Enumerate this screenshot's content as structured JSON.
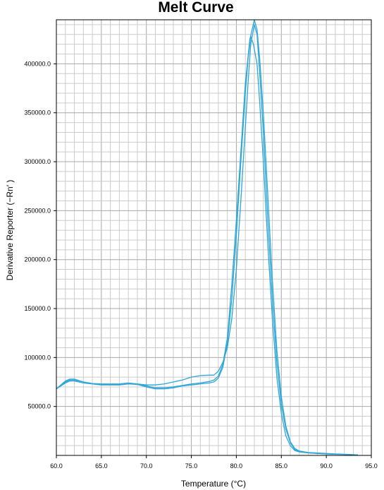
{
  "chart_data": {
    "type": "line",
    "title": "Melt Curve",
    "xlabel": "Temperature (°C)",
    "ylabel": "Derivative Reporter (−Rn′ )",
    "xlim": [
      60.0,
      95.0
    ],
    "ylim": [
      0,
      445000
    ],
    "x_ticks": [
      "60.0",
      "65.0",
      "70.0",
      "75.0",
      "80.0",
      "85.0",
      "90.0",
      "95.0"
    ],
    "y_ticks": [
      "50000.0",
      "100000.0",
      "150000.0",
      "200000.0",
      "250000.0",
      "300000.0",
      "350000.0",
      "400000.0"
    ],
    "x_tick_values": [
      60,
      65,
      70,
      75,
      80,
      85,
      90,
      95
    ],
    "y_tick_values": [
      50000,
      100000,
      150000,
      200000,
      250000,
      300000,
      350000,
      400000
    ],
    "grid": true,
    "line_color": "#2ea6d8",
    "series": [
      {
        "x": [
          60.0,
          60.5,
          61.0,
          61.5,
          62.0,
          63.0,
          64.0,
          65.0,
          66.0,
          67.0,
          68.0,
          69.0,
          70.0,
          71.0,
          72.0,
          73.0,
          74.0,
          75.0,
          76.0,
          77.0,
          77.5,
          78.0,
          78.5,
          79.0,
          79.5,
          80.0,
          80.5,
          81.0,
          81.3,
          81.6,
          82.0,
          82.3,
          82.6,
          83.0,
          83.5,
          84.0,
          84.5,
          85.0,
          85.5,
          86.0,
          86.5,
          87.0,
          88.0,
          89.0,
          90.0,
          91.0,
          92.0,
          93.5
        ],
        "values": [
          68000,
          71000,
          75000,
          77000,
          77000,
          75000,
          73000,
          72500,
          72500,
          72500,
          73000,
          73000,
          72000,
          72000,
          73000,
          75000,
          77000,
          80000,
          81500,
          82000,
          82000,
          86000,
          95000,
          110000,
          140000,
          190000,
          260000,
          335000,
          380000,
          420000,
          440000,
          430000,
          390000,
          330000,
          240000,
          160000,
          95000,
          52000,
          27000,
          13000,
          6000,
          4000,
          2500,
          2000,
          1500,
          1200,
          1000,
          500
        ]
      },
      {
        "x": [
          60.0,
          60.5,
          61.0,
          61.5,
          62.0,
          63.0,
          64.0,
          65.0,
          66.0,
          67.0,
          68.0,
          69.0,
          70.0,
          71.0,
          72.0,
          73.0,
          74.0,
          75.0,
          76.0,
          77.0,
          77.5,
          78.0,
          78.5,
          79.0,
          79.5,
          80.0,
          80.5,
          81.0,
          81.3,
          81.6,
          81.9,
          82.3,
          82.6,
          83.0,
          83.5,
          84.0,
          84.5,
          85.0,
          85.5,
          86.0,
          86.5,
          87.0,
          88.0,
          89.0,
          90.0,
          91.0,
          92.0,
          93.5
        ],
        "values": [
          68000,
          71000,
          74000,
          76000,
          76000,
          74000,
          73000,
          72000,
          72000,
          72000,
          73000,
          72500,
          70000,
          68000,
          68000,
          69000,
          71000,
          72000,
          73000,
          74000,
          75000,
          79000,
          90000,
          115000,
          160000,
          225000,
          300000,
          370000,
          405000,
          428000,
          420000,
          400000,
          360000,
          300000,
          215000,
          140000,
          80000,
          43000,
          20000,
          10000,
          5000,
          3500,
          2500,
          2000,
          1500,
          1200,
          1000,
          500
        ]
      },
      {
        "x": [
          60.0,
          60.5,
          61.0,
          61.5,
          62.0,
          63.0,
          64.0,
          65.0,
          66.0,
          67.0,
          68.0,
          69.0,
          70.0,
          71.0,
          72.0,
          73.0,
          74.0,
          75.0,
          76.0,
          77.0,
          77.5,
          78.0,
          78.5,
          79.0,
          79.5,
          80.0,
          80.5,
          81.0,
          81.5,
          82.0,
          82.3,
          82.6,
          83.0,
          83.5,
          84.0,
          84.5,
          85.0,
          85.5,
          86.0,
          86.5,
          87.0,
          88.0,
          89.0,
          90.0,
          91.0,
          92.0,
          93.5
        ],
        "values": [
          68000,
          72000,
          76000,
          78000,
          78000,
          75000,
          73500,
          73000,
          73000,
          73000,
          74000,
          73000,
          71000,
          69000,
          69000,
          70000,
          71500,
          73000,
          74000,
          75500,
          77000,
          81000,
          93000,
          120000,
          175000,
          240000,
          310000,
          380000,
          425000,
          445000,
          435000,
          405000,
          350000,
          265000,
          180000,
          108000,
          60000,
          30000,
          14000,
          7000,
          4500,
          3000,
          2500,
          2000,
          1500,
          1200,
          500
        ]
      }
    ]
  }
}
